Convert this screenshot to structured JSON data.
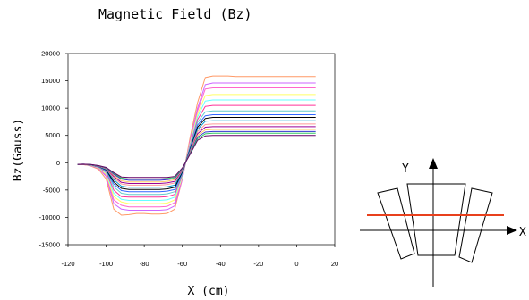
{
  "chart_data": {
    "type": "line",
    "title": "Magnetic Field (Bz)",
    "xlabel": "X (cm)",
    "ylabel": "Bz(Gauss)",
    "xlim": [
      -120,
      20
    ],
    "ylim": [
      -15000,
      20000
    ],
    "xticks": [
      "-120",
      "-100",
      "-80",
      "-60",
      "-40",
      "-20",
      "0",
      "20"
    ],
    "yticks": [
      "20000",
      "15000",
      "10000",
      "5000",
      "0",
      "-5000",
      "-10000",
      "-15000"
    ],
    "grid": false,
    "legend": "none",
    "x": [
      -115,
      -112,
      -108,
      -104,
      -100,
      -96,
      -92,
      -88,
      -84,
      -80,
      -76,
      -72,
      -68,
      -64,
      -60,
      -56,
      -52,
      -48,
      -44,
      -40,
      -36,
      -32,
      -28,
      -24,
      -20,
      -16,
      -12,
      -8,
      -4,
      0,
      4,
      8,
      10
    ],
    "series": [
      {
        "color": "#ff9966",
        "values": [
          -300,
          -350,
          -600,
          -1200,
          -3000,
          -8500,
          -9600,
          -9500,
          -9300,
          -9300,
          -9400,
          -9400,
          -9300,
          -8500,
          -3000,
          4500,
          11000,
          15600,
          15900,
          15900,
          15900,
          15800,
          15800,
          15800,
          15800,
          15800,
          15800,
          15800,
          15800,
          15800,
          15800,
          15800,
          15800
        ]
      },
      {
        "color": "#cc66ff",
        "values": [
          -300,
          -330,
          -550,
          -1000,
          -2500,
          -7500,
          -8500,
          -8700,
          -8700,
          -8700,
          -8700,
          -8700,
          -8600,
          -7900,
          -3000,
          4000,
          10000,
          14300,
          14600,
          14600,
          14600,
          14600,
          14600,
          14600,
          14600,
          14600,
          14600,
          14600,
          14600,
          14600,
          14600,
          14600,
          14600
        ]
      },
      {
        "color": "#ff66cc",
        "values": [
          -300,
          -320,
          -520,
          -950,
          -2300,
          -6800,
          -7800,
          -8100,
          -8100,
          -8100,
          -8100,
          -8100,
          -8000,
          -7300,
          -2800,
          3800,
          9500,
          13500,
          13700,
          13700,
          13700,
          13700,
          13700,
          13700,
          13700,
          13700,
          13700,
          13700,
          13700,
          13700,
          13700,
          13700,
          13700
        ]
      },
      {
        "color": "#ffff66",
        "values": [
          -300,
          -310,
          -500,
          -900,
          -2100,
          -6200,
          -7200,
          -7500,
          -7500,
          -7500,
          -7500,
          -7500,
          -7400,
          -6800,
          -2600,
          3500,
          8900,
          12300,
          12500,
          12500,
          12500,
          12500,
          12500,
          12500,
          12500,
          12500,
          12500,
          12500,
          12500,
          12500,
          12500,
          12500,
          12500
        ]
      },
      {
        "color": "#66ffff",
        "values": [
          -300,
          -300,
          -480,
          -850,
          -1900,
          -5600,
          -6700,
          -6900,
          -6900,
          -6900,
          -6900,
          -6900,
          -6800,
          -6300,
          -2400,
          3300,
          8400,
          11300,
          11500,
          11500,
          11500,
          11500,
          11500,
          11500,
          11500,
          11500,
          11500,
          11500,
          11500,
          11500,
          11500,
          11500,
          11500
        ]
      },
      {
        "color": "#ff3399",
        "values": [
          -300,
          -300,
          -450,
          -800,
          -1700,
          -5000,
          -6200,
          -6300,
          -6300,
          -6300,
          -6300,
          -6300,
          -6200,
          -5800,
          -2200,
          3000,
          7900,
          10300,
          10500,
          10500,
          10500,
          10500,
          10500,
          10500,
          10500,
          10500,
          10500,
          10500,
          10500,
          10500,
          10500,
          10500,
          10500
        ]
      },
      {
        "color": "#66cccc",
        "values": [
          -300,
          -300,
          -430,
          -750,
          -1500,
          -4400,
          -5600,
          -5800,
          -5800,
          -5800,
          -5800,
          -5800,
          -5700,
          -5300,
          -2000,
          2800,
          7400,
          9300,
          9500,
          9500,
          9500,
          9500,
          9500,
          9500,
          9500,
          9500,
          9500,
          9500,
          9500,
          9500,
          9500,
          9500,
          9500
        ]
      },
      {
        "color": "#3366ff",
        "values": [
          -300,
          -300,
          -410,
          -700,
          -1400,
          -3900,
          -5100,
          -5300,
          -5300,
          -5300,
          -5300,
          -5300,
          -5200,
          -4900,
          -1800,
          2600,
          6900,
          8600,
          8800,
          8800,
          8800,
          8800,
          8800,
          8800,
          8800,
          8800,
          8800,
          8800,
          8800,
          8800,
          8800,
          8800,
          8800
        ]
      },
      {
        "color": "#000000",
        "values": [
          -300,
          -300,
          -400,
          -680,
          -1300,
          -3500,
          -4700,
          -4900,
          -4900,
          -4900,
          -4900,
          -4900,
          -4800,
          -4500,
          -1700,
          2400,
          6500,
          8100,
          8300,
          8300,
          8300,
          8300,
          8300,
          8300,
          8300,
          8300,
          8300,
          8300,
          8300,
          8300,
          8300,
          8300,
          8300
        ]
      },
      {
        "color": "#0099cc",
        "values": [
          -300,
          -290,
          -390,
          -650,
          -1200,
          -3100,
          -4300,
          -4500,
          -4500,
          -4500,
          -4500,
          -4500,
          -4400,
          -4100,
          -1500,
          2200,
          6100,
          7600,
          7700,
          7700,
          7700,
          7700,
          7700,
          7700,
          7700,
          7700,
          7700,
          7700,
          7700,
          7700,
          7700,
          7700,
          7700
        ]
      },
      {
        "color": "#ff9999",
        "values": [
          -300,
          -290,
          -380,
          -620,
          -1100,
          -2800,
          -3900,
          -4100,
          -4100,
          -4100,
          -4100,
          -4100,
          -4000,
          -3700,
          -1400,
          2000,
          5700,
          7000,
          7100,
          7100,
          7100,
          7100,
          7100,
          7100,
          7100,
          7100,
          7100,
          7100,
          7100,
          7100,
          7100,
          7100,
          7100
        ]
      },
      {
        "color": "#990099",
        "values": [
          -300,
          -280,
          -370,
          -600,
          -1050,
          -2500,
          -3600,
          -3800,
          -3800,
          -3800,
          -3800,
          -3800,
          -3700,
          -3400,
          -1300,
          1900,
          5300,
          6500,
          6600,
          6600,
          6600,
          6600,
          6600,
          6600,
          6600,
          6600,
          6600,
          6600,
          6600,
          6600,
          6600,
          6600,
          6600
        ]
      },
      {
        "color": "#ffcc66",
        "values": [
          -300,
          -280,
          -360,
          -580,
          -1000,
          -2300,
          -3300,
          -3500,
          -3500,
          -3500,
          -3500,
          -3500,
          -3400,
          -3100,
          -1200,
          1800,
          5000,
          6000,
          6100,
          6100,
          6100,
          6100,
          6100,
          6100,
          6100,
          6100,
          6100,
          6100,
          6100,
          6100,
          6100,
          6100,
          6100
        ]
      },
      {
        "color": "#3333cc",
        "values": [
          -300,
          -270,
          -350,
          -560,
          -950,
          -2100,
          -3000,
          -3200,
          -3200,
          -3200,
          -3200,
          -3200,
          -3100,
          -2900,
          -1100,
          1700,
          4700,
          5600,
          5700,
          5700,
          5700,
          5700,
          5700,
          5700,
          5700,
          5700,
          5700,
          5700,
          5700,
          5700,
          5700,
          5700,
          5700
        ]
      },
      {
        "color": "#33cc66",
        "values": [
          -300,
          -270,
          -340,
          -540,
          -900,
          -1900,
          -2800,
          -3000,
          -3000,
          -3000,
          -3000,
          -3000,
          -2900,
          -2700,
          -1000,
          1600,
          4400,
          5300,
          5400,
          5400,
          5400,
          5400,
          5400,
          5400,
          5400,
          5400,
          5400,
          5400,
          5400,
          5400,
          5400,
          5400,
          5400
        ]
      },
      {
        "color": "#660066",
        "values": [
          -300,
          -260,
          -330,
          -520,
          -860,
          -1800,
          -2600,
          -2700,
          -2700,
          -2700,
          -2700,
          -2700,
          -2700,
          -2500,
          -950,
          1500,
          4100,
          4900,
          5000,
          5000,
          5000,
          5000,
          5000,
          5000,
          5000,
          5000,
          5000,
          5000,
          5000,
          5000,
          5000,
          5000,
          5000
        ]
      }
    ]
  },
  "inset": {
    "y_axis_label": "Y",
    "x_axis_label": "X",
    "cut_line_color": "#e8401c"
  }
}
